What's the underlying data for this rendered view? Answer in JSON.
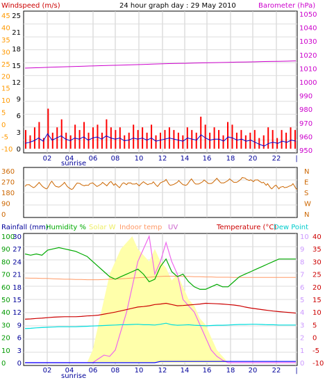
{
  "header": {
    "title": "24 hour graph day : 29 May 2010",
    "left_label": "Windspeed (m/s)",
    "right_label": "Barometer (hPa)",
    "colors": {
      "title": "#000000",
      "wind_label": "#cc0000",
      "baro_label": "#cc00cc"
    }
  },
  "chart_data": [
    {
      "type": "line",
      "id": "wind-baro",
      "x_ticks": [
        "02",
        "04",
        "06",
        "08",
        "10",
        "12",
        "14",
        "16",
        "18",
        "20",
        "22"
      ],
      "x_annotation": "sunrise",
      "y_left_outer": {
        "ticks": [
          "-10",
          "-5",
          "0",
          "5",
          "10",
          "15",
          "20",
          "25",
          "30",
          "35",
          "40",
          "45"
        ],
        "color": "#ff9900"
      },
      "y_left_inner": {
        "ticks": [
          "0",
          "3",
          "6",
          "9",
          "12",
          "15",
          "18",
          "21",
          "24",
          "25"
        ],
        "display_ticks": [
          "0",
          "3",
          "6",
          "9",
          "12",
          "15",
          "18",
          "21",
          "25"
        ],
        "color": "#000000"
      },
      "y_right": {
        "ticks": [
          "950",
          "960",
          "970",
          "980",
          "990",
          "1000",
          "1010",
          "1020",
          "1030",
          "1040",
          "1050"
        ],
        "color": "#cc00cc",
        "range": [
          948,
          1052
        ]
      },
      "series": [
        {
          "key": "gust",
          "color": "#ff0000",
          "style": "bars",
          "values": [
            3.5,
            2.5,
            4.0,
            5.0,
            2.0,
            7.5,
            3.0,
            4.0,
            5.5,
            3.0,
            2.5,
            4.5,
            3.5,
            5.0,
            3.0,
            4.0,
            4.5,
            3.0,
            5.5,
            4.0,
            3.5,
            4.0,
            2.5,
            3.0,
            4.5,
            3.5,
            4.0,
            3.0,
            4.5,
            2.5,
            3.0,
            3.5,
            4.0,
            3.5,
            3.0,
            2.5,
            4.0,
            3.5,
            3.0,
            6.0,
            4.5,
            3.0,
            4.0,
            3.5,
            2.5,
            5.0,
            4.5,
            3.0,
            3.5,
            2.5,
            3.0,
            3.5,
            2.0,
            2.5,
            4.0,
            3.5,
            2.0,
            3.5,
            3.0,
            4.0,
            3.5
          ]
        },
        {
          "key": "average",
          "color": "#0000cc",
          "style": "line",
          "values": [
            1.0,
            1.2,
            1.5,
            2.0,
            1.4,
            2.8,
            1.6,
            2.0,
            2.4,
            1.8,
            1.5,
            2.0,
            1.8,
            2.2,
            1.6,
            2.0,
            2.2,
            1.8,
            2.4,
            2.0,
            1.8,
            2.0,
            1.5,
            1.6,
            2.0,
            1.8,
            2.0,
            1.6,
            2.0,
            1.4,
            1.6,
            1.8,
            2.0,
            1.8,
            1.6,
            1.4,
            2.0,
            1.8,
            1.6,
            2.6,
            2.0,
            1.6,
            1.8,
            1.8,
            1.4,
            2.2,
            2.0,
            1.6,
            1.8,
            1.4,
            1.6,
            1.2,
            0.8,
            0.5,
            1.0,
            1.2,
            1.0,
            1.4,
            1.2,
            1.6,
            1.4
          ]
        },
        {
          "key": "barometer",
          "color": "#cc00cc",
          "style": "line",
          "values": [
            1010.2,
            1010.4,
            1010.6,
            1010.8,
            1011.0,
            1011.2,
            1011.4,
            1011.6,
            1011.8,
            1012.0,
            1012.2,
            1012.3,
            1012.5,
            1012.7,
            1012.9,
            1013.1,
            1013.3,
            1013.5,
            1013.6,
            1013.7,
            1013.9,
            1014.0,
            1014.1,
            1014.3,
            1014.4,
            1014.6,
            1014.7,
            1014.8,
            1015.0,
            1015.1,
            1015.2,
            1015.3,
            1015.5
          ]
        }
      ]
    },
    {
      "type": "line",
      "id": "direction",
      "x_ticks": [
        "02",
        "04",
        "06",
        "08",
        "10",
        "12",
        "14",
        "16",
        "18",
        "20",
        "22"
      ],
      "y_left": {
        "ticks": [
          "0",
          "90",
          "180",
          "270",
          "360"
        ],
        "color": "#cc6600"
      },
      "y_right": {
        "ticks": [
          "N",
          "W",
          "S",
          "E",
          "N"
        ],
        "color": "#cc6600"
      },
      "series": [
        {
          "key": "direction",
          "color": "#cc6600",
          "values": [
            230,
            245,
            220,
            250,
            235,
            210,
            260,
            240,
            225,
            250,
            230,
            205,
            245,
            255,
            235,
            240,
            260,
            230,
            250,
            245,
            265,
            240,
            230,
            255,
            245,
            260,
            250,
            235,
            270,
            245,
            255,
            240,
            260,
            275,
            250,
            245,
            265,
            255,
            240,
            280,
            260,
            250,
            270,
            265,
            255,
            285,
            270,
            260,
            280,
            275,
            265,
            290,
            300,
            280,
            270,
            285,
            260,
            240,
            220,
            235,
            210,
            230,
            225,
            240,
            215
          ]
        }
      ]
    },
    {
      "type": "line",
      "id": "temp-humidity",
      "labels": {
        "rainfall": "Rainfall (mm)",
        "humidity": "Humidity %",
        "solar": "Solar W",
        "indoor": "Indoor temp",
        "uv": "UV",
        "temperature": "Temperature (°C)",
        "dewpoint": "Dew Point"
      },
      "x_ticks": [
        "02",
        "04",
        "06",
        "08",
        "10",
        "12",
        "14",
        "16",
        "18",
        "20",
        "22"
      ],
      "x_annotation": "sunrise",
      "y_left_outer": {
        "ticks": [
          "0",
          "10",
          "20",
          "30",
          "40",
          "50",
          "60",
          "70",
          "80",
          "90",
          "100"
        ],
        "color": "#009900"
      },
      "y_left_inner": {
        "ticks": [
          "0",
          "3",
          "6",
          "9",
          "12",
          "15",
          "18",
          "21",
          "24",
          "27",
          "30"
        ],
        "color": "#000099"
      },
      "y_right_inner": {
        "ticks": [
          "0",
          "1",
          "2",
          "3",
          "4",
          "5",
          "6",
          "7",
          "8",
          "9",
          "10"
        ],
        "color": "#cc99ff"
      },
      "y_right_outer": {
        "ticks": [
          "-10",
          "-5",
          "0",
          "5",
          "10",
          "15",
          "20",
          "25",
          "30",
          "35",
          "40"
        ],
        "color": "#cc0000"
      },
      "series": [
        {
          "key": "humidity",
          "color": "#00aa00",
          "values": [
            86,
            85,
            86,
            85,
            89,
            90,
            91,
            90,
            89,
            88,
            86,
            84,
            80,
            76,
            72,
            68,
            66,
            68,
            70,
            72,
            74,
            70,
            64,
            66,
            76,
            82,
            72,
            68,
            70,
            64,
            60,
            58,
            58,
            60,
            62,
            60,
            60,
            64,
            68,
            70,
            72,
            74,
            76,
            78,
            80,
            82,
            82,
            82,
            82
          ]
        },
        {
          "key": "solar",
          "color": "#ffffaa",
          "style": "area",
          "values": [
            0,
            0,
            0,
            0,
            0,
            0,
            0,
            0,
            0,
            0,
            0,
            0,
            1,
            3,
            5,
            7,
            8,
            9,
            9.5,
            10,
            9,
            8.5,
            8,
            9,
            8,
            7.5,
            6.5,
            7,
            6,
            5,
            4.5,
            3.5,
            3,
            2,
            1,
            0.5,
            0,
            0,
            0,
            0,
            0,
            0,
            0,
            0,
            0,
            0,
            0,
            0,
            0
          ]
        },
        {
          "key": "uv",
          "color": "#ee66ee",
          "values": [
            0,
            0,
            0,
            0,
            0,
            0,
            0,
            0,
            0,
            0,
            0,
            0,
            0,
            0.3,
            0.6,
            0.5,
            1,
            2.5,
            4,
            6,
            8,
            9,
            10,
            7,
            8,
            9.5,
            8,
            7,
            5,
            4.5,
            4,
            3,
            2,
            1,
            0.5,
            0.2,
            0,
            0,
            0,
            0,
            0,
            0,
            0,
            0,
            0,
            0,
            0,
            0,
            0
          ]
        },
        {
          "key": "indoor",
          "color": "#ff9966",
          "values": [
            23.5,
            23.4,
            23.4,
            23.3,
            23.3,
            23.2,
            23.1,
            23.0,
            23.0,
            22.9,
            22.9,
            22.8,
            22.8,
            22.8,
            22.9,
            23.0,
            23.1,
            23.2,
            23.3,
            23.5,
            23.6,
            23.7,
            23.8,
            24.0,
            24.1,
            24.2,
            24.2,
            24.2,
            24.1,
            24.1,
            24.0,
            24.0,
            23.9,
            23.9,
            23.8,
            23.8,
            23.8,
            23.7,
            23.7,
            23.7,
            23.7,
            23.7,
            23.7,
            23.7,
            23.7,
            23.7,
            23.7,
            23.7,
            23.7
          ]
        },
        {
          "key": "temperature",
          "color": "#cc0000",
          "values": [
            7.2,
            7.3,
            7.5,
            7.6,
            7.8,
            8.0,
            8.1,
            8.2,
            8.2,
            8.2,
            8.3,
            8.5,
            8.6,
            8.8,
            9.2,
            9.6,
            10.0,
            10.5,
            11.0,
            11.5,
            12.0,
            12.2,
            12.5,
            13.0,
            13.2,
            13.5,
            13.0,
            12.5,
            12.6,
            12.8,
            13.0,
            13.2,
            13.5,
            13.4,
            13.3,
            13.2,
            13.0,
            12.8,
            12.5,
            12.0,
            11.6,
            11.3,
            11.0,
            10.7,
            10.4,
            10.2,
            10.0,
            9.8,
            9.6
          ]
        },
        {
          "key": "dewpoint",
          "color": "#00dddd",
          "values": [
            3.5,
            3.6,
            3.8,
            3.9,
            4.0,
            4.1,
            4.2,
            4.2,
            4.2,
            4.2,
            4.3,
            4.4,
            4.5,
            4.6,
            4.7,
            4.8,
            4.9,
            5.0,
            5.0,
            5.1,
            5.2,
            5.0,
            5.0,
            4.9,
            5.2,
            5.6,
            5.0,
            4.8,
            4.9,
            5.0,
            4.8,
            4.7,
            4.6,
            4.7,
            4.8,
            4.8,
            4.9,
            5.0,
            5.1,
            5.1,
            5.2,
            5.2,
            5.1,
            5.0,
            5.0,
            4.9,
            4.9,
            4.9,
            4.9
          ]
        },
        {
          "key": "rainfall",
          "color": "#0000ff",
          "values": [
            0,
            0,
            0,
            0,
            0,
            0,
            0,
            0,
            0,
            0,
            0,
            0,
            0,
            0,
            0,
            0,
            0,
            0,
            0,
            0,
            0,
            0,
            0,
            0,
            0.3,
            0.3,
            0.3,
            0.3,
            0.3,
            0.3,
            0.3,
            0.3,
            0.3,
            0.3,
            0.3,
            0.3,
            0.3,
            0.3,
            0.3,
            0.3,
            0.3,
            0.3,
            0.3,
            0.3,
            0.3,
            0.3,
            0.3,
            0.3,
            0.3
          ]
        }
      ]
    }
  ]
}
